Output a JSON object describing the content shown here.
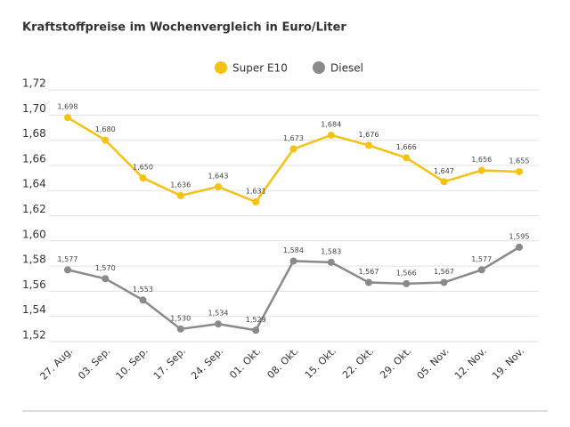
{
  "chart_data": {
    "type": "line",
    "title": "Kraftstoffpreise im Wochenvergleich in Euro/Liter",
    "categories": [
      "27. Aug.",
      "03. Sep.",
      "10. Sep.",
      "17. Sep.",
      "24. Sep.",
      "01. Okt.",
      "08. Okt.",
      "15. Okt.",
      "22. Okt.",
      "29. Okt.",
      "05. Nov.",
      "12. Nov.",
      "19. Nov."
    ],
    "series": [
      {
        "name": "Super E10",
        "color": "#f5c211",
        "values": [
          1.698,
          1.68,
          1.65,
          1.636,
          1.643,
          1.631,
          1.673,
          1.684,
          1.676,
          1.666,
          1.647,
          1.656,
          1.655
        ],
        "value_labels": [
          "1,698",
          "1,680",
          "1,650",
          "1,636",
          "1,643",
          "1,631",
          "1,673",
          "1,684",
          "1,676",
          "1,666",
          "1,647",
          "1,656",
          "1,655"
        ]
      },
      {
        "name": "Diesel",
        "color": "#8a8a8a",
        "values": [
          1.577,
          1.57,
          1.553,
          1.53,
          1.534,
          1.529,
          1.584,
          1.583,
          1.567,
          1.566,
          1.567,
          1.577,
          1.595
        ],
        "value_labels": [
          "1,577",
          "1,570",
          "1,553",
          "1,530",
          "1,534",
          "1,529",
          "1,584",
          "1,583",
          "1,567",
          "1,566",
          "1,567",
          "1,577",
          "1,595"
        ]
      }
    ],
    "ylim": [
      1.52,
      1.72
    ],
    "yticks": [
      {
        "value": 1.52,
        "label": "1,52"
      },
      {
        "value": 1.54,
        "label": "1,54"
      },
      {
        "value": 1.56,
        "label": "1,56"
      },
      {
        "value": 1.58,
        "label": "1,58"
      },
      {
        "value": 1.6,
        "label": "1,60"
      },
      {
        "value": 1.62,
        "label": "1,62"
      },
      {
        "value": 1.64,
        "label": "1,64"
      },
      {
        "value": 1.66,
        "label": "1,66"
      },
      {
        "value": 1.68,
        "label": "1,68"
      },
      {
        "value": 1.7,
        "label": "1,70"
      },
      {
        "value": 1.72,
        "label": "1,72"
      }
    ],
    "grid": true,
    "legend": "top"
  }
}
